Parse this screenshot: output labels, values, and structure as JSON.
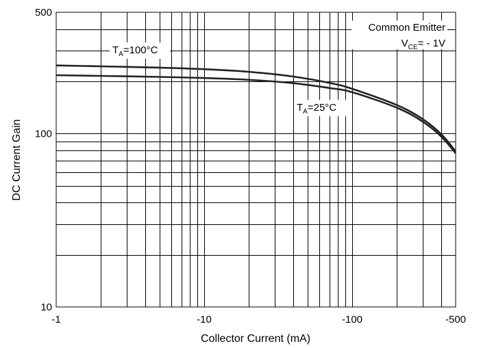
{
  "chart_data": {
    "type": "line",
    "x_scale": "log",
    "y_scale": "log",
    "xlabel": "Collector Current (mA)",
    "ylabel": "DC Current Gain",
    "xlim": [
      -1,
      -500
    ],
    "ylim": [
      10,
      500
    ],
    "x_ticks": [
      "-1",
      "-10",
      "-100",
      "-500"
    ],
    "y_ticks": [
      "500",
      "100",
      "10"
    ],
    "grid": true,
    "annotation": {
      "line1": "Common Emitter",
      "vce_prefix": "V",
      "vce_sub": "CE",
      "vce_suffix": "= - 1V"
    },
    "series": [
      {
        "name": "TA=100°C",
        "label_prefix": "T",
        "label_sub": "A",
        "label_suffix": "=100°C",
        "x": [
          -1,
          -2,
          -5,
          -10,
          -20,
          -40,
          -70,
          -100,
          -200,
          -300,
          -400,
          -500
        ],
        "y": [
          247,
          244,
          240,
          235,
          227,
          213,
          196,
          181,
          146,
          121,
          99,
          79
        ]
      },
      {
        "name": "TA=25°C",
        "label_prefix": "T",
        "label_sub": "A",
        "label_suffix": "=25°C",
        "x": [
          -1,
          -2,
          -5,
          -10,
          -20,
          -40,
          -70,
          -100,
          -200,
          -300,
          -400,
          -500
        ],
        "y": [
          217,
          215,
          212,
          209,
          204,
          195,
          183,
          173,
          141,
          117,
          96,
          77
        ]
      }
    ]
  }
}
